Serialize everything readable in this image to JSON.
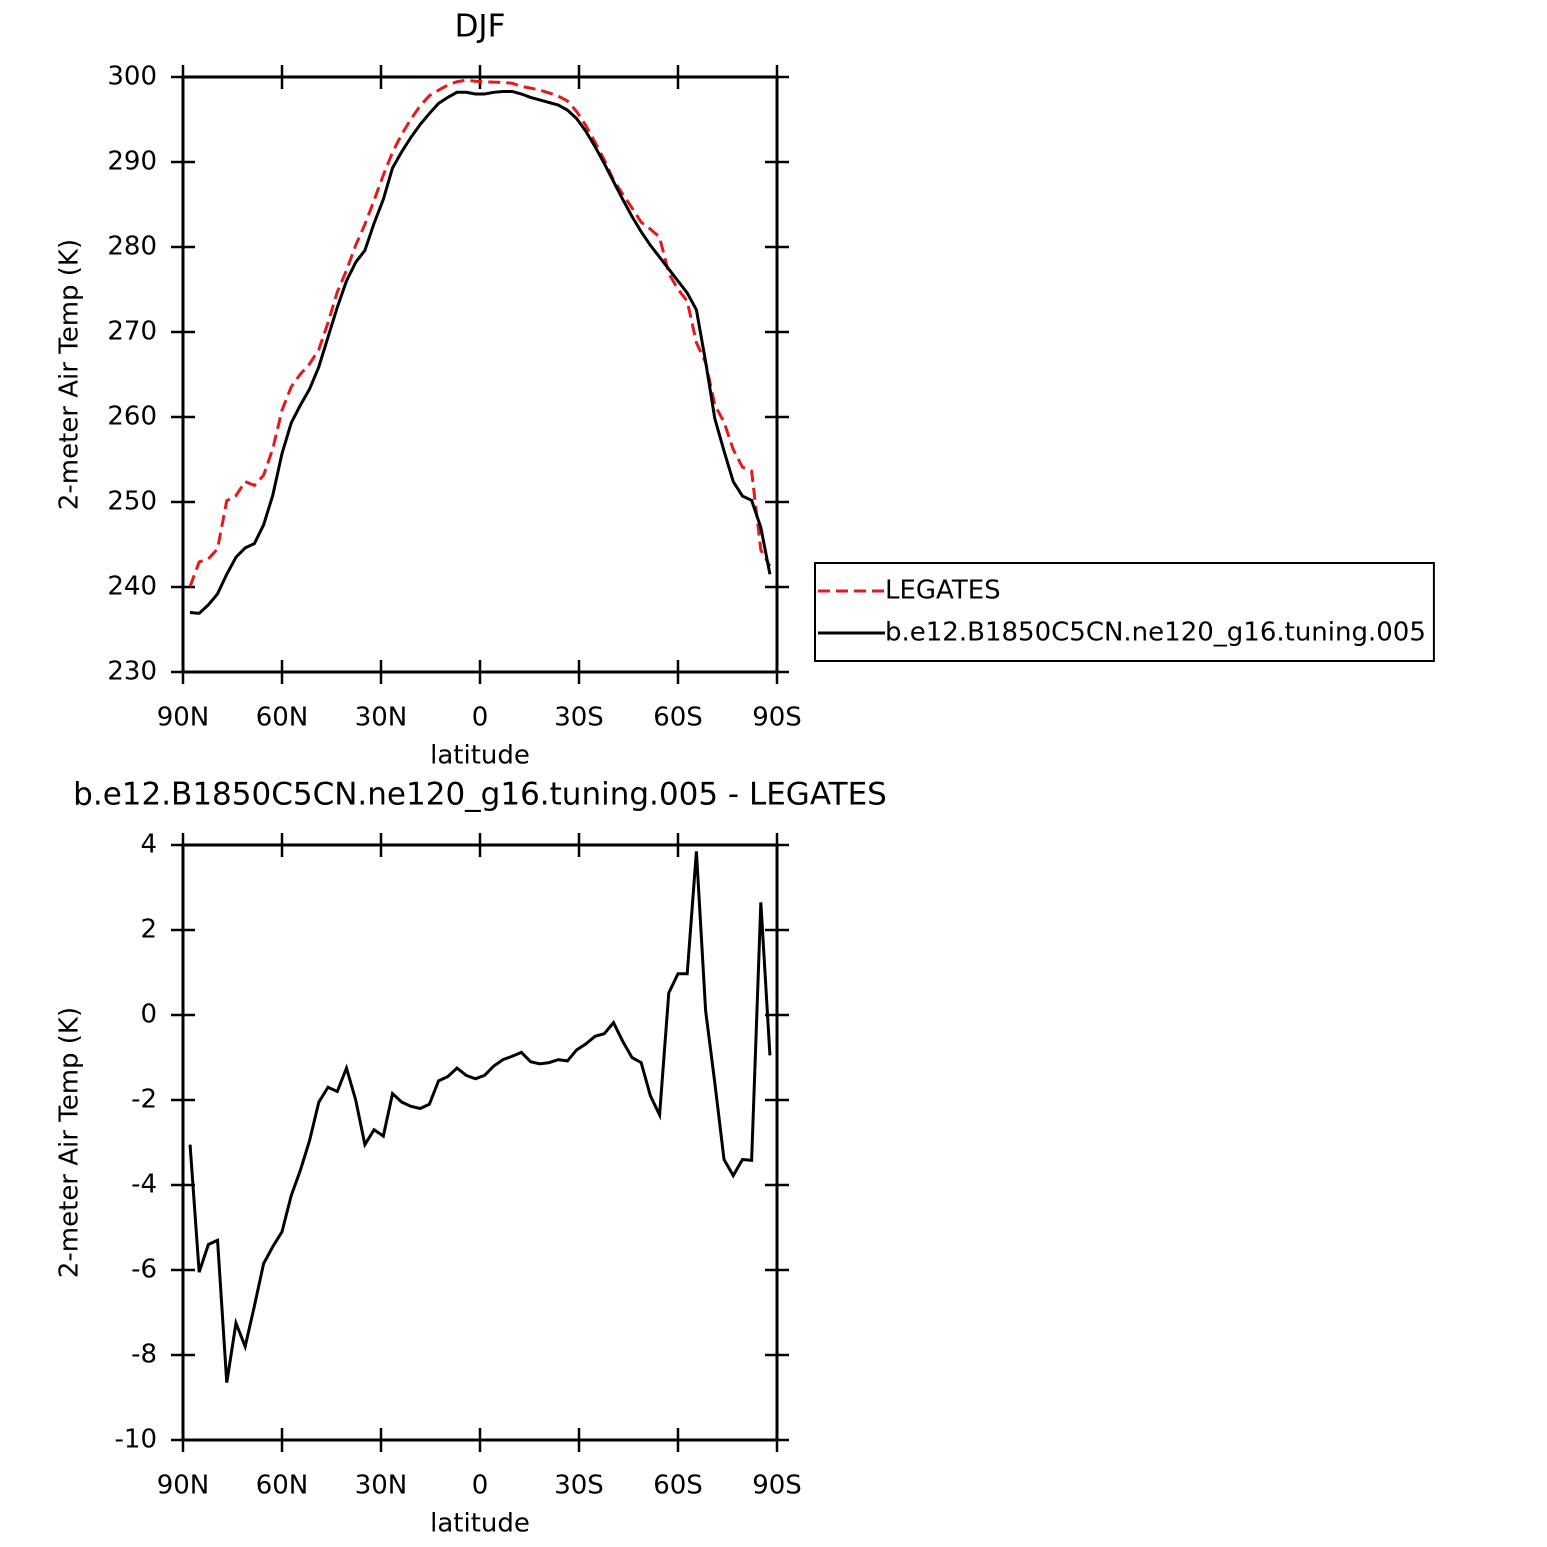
{
  "chart_data": [
    {
      "type": "line",
      "title": "DJF",
      "xlabel": "latitude",
      "ylabel": "2-meter Air Temp (K)",
      "x": [
        87.86,
        85.1,
        82.31,
        79.53,
        76.74,
        73.95,
        71.16,
        68.37,
        65.58,
        62.79,
        60.0,
        57.21,
        54.42,
        51.63,
        48.84,
        46.05,
        43.25,
        40.46,
        37.67,
        34.88,
        32.09,
        29.3,
        26.51,
        23.72,
        20.93,
        18.14,
        15.35,
        12.56,
        9.77,
        6.98,
        4.19,
        1.4,
        -1.4,
        -4.19,
        -6.98,
        -9.77,
        -12.56,
        -15.35,
        -18.14,
        -20.93,
        -23.72,
        -26.51,
        -29.3,
        -32.09,
        -34.88,
        -37.67,
        -40.46,
        -43.25,
        -46.05,
        -48.84,
        -51.63,
        -54.42,
        -57.21,
        -60.0,
        -62.79,
        -65.58,
        -68.37,
        -71.16,
        -73.95,
        -76.74,
        -79.53,
        -82.31,
        -85.1,
        -87.86
      ],
      "series": [
        {
          "name": "LEGATES",
          "color": "#e31a1c",
          "dash": true,
          "values": [
            240.05,
            242.95,
            243.3,
            244.5,
            250.15,
            250.75,
            252.4,
            251.95,
            253.15,
            256.25,
            260.8,
            263.55,
            265.05,
            266.25,
            267.95,
            271.1,
            274.7,
            277.25,
            280.2,
            282.65,
            285.5,
            288.45,
            291.15,
            293.25,
            295.05,
            296.6,
            297.8,
            298.45,
            299.05,
            299.45,
            299.62,
            299.5,
            299.42,
            299.4,
            299.35,
            299.27,
            298.88,
            298.7,
            298.45,
            298.12,
            297.75,
            297.18,
            295.92,
            294.28,
            292.3,
            290.24,
            287.88,
            286.22,
            284.6,
            282.92,
            282.1,
            281.15,
            276.88,
            275.03,
            273.63,
            268.75,
            266.4,
            261.4,
            259.4,
            256.18,
            254.1,
            253.62,
            244.35,
            242.45
          ]
        },
        {
          "name": "b.e12.B1850C5CN.ne120_g16.tuning.005",
          "color": "#000000",
          "dash": false,
          "values": [
            237.0,
            236.9,
            237.9,
            239.2,
            241.5,
            243.5,
            244.6,
            245.1,
            247.3,
            250.8,
            255.7,
            259.3,
            261.4,
            263.3,
            265.9,
            269.4,
            272.9,
            276.0,
            278.2,
            279.6,
            282.8,
            285.6,
            289.3,
            291.2,
            292.9,
            294.4,
            295.7,
            296.9,
            297.6,
            298.2,
            298.2,
            298.0,
            298.0,
            298.2,
            298.3,
            298.3,
            298.0,
            297.6,
            297.3,
            297.0,
            296.7,
            296.1,
            295.1,
            293.6,
            291.8,
            289.8,
            287.7,
            285.6,
            283.6,
            281.8,
            280.2,
            278.8,
            277.4,
            276.0,
            274.6,
            272.6,
            266.5,
            259.8,
            256.0,
            252.4,
            250.7,
            250.2,
            247.0,
            241.5
          ]
        }
      ],
      "xlim": [
        90,
        -90
      ],
      "xticks": [
        {
          "value": 90,
          "label": "90N"
        },
        {
          "value": 60,
          "label": "60N"
        },
        {
          "value": 30,
          "label": "30N"
        },
        0,
        {
          "value": -30,
          "label": "30S"
        },
        {
          "value": -60,
          "label": "60S"
        },
        {
          "value": -90,
          "label": "90S"
        }
      ],
      "ylim": [
        230,
        300
      ],
      "yticks": [
        230,
        240,
        250,
        260,
        270,
        280,
        290,
        300
      ],
      "legend": "right"
    },
    {
      "type": "line",
      "title": "b.e12.B1850C5CN.ne120_g16.tuning.005 - LEGATES",
      "xlabel": "latitude",
      "ylabel": "2-meter Air Temp (K)",
      "x": [
        87.86,
        85.1,
        82.31,
        79.53,
        76.74,
        73.95,
        71.16,
        68.37,
        65.58,
        62.79,
        60.0,
        57.21,
        54.42,
        51.63,
        48.84,
        46.05,
        43.25,
        40.46,
        37.67,
        34.88,
        32.09,
        29.3,
        26.51,
        23.72,
        20.93,
        18.14,
        15.35,
        12.56,
        9.77,
        6.98,
        4.19,
        1.4,
        -1.4,
        -4.19,
        -6.98,
        -9.77,
        -12.56,
        -15.35,
        -18.14,
        -20.93,
        -23.72,
        -26.51,
        -29.3,
        -32.09,
        -34.88,
        -37.67,
        -40.46,
        -43.25,
        -46.05,
        -48.84,
        -51.63,
        -54.42,
        -57.21,
        -60.0,
        -62.79,
        -65.58,
        -68.37,
        -71.16,
        -73.95,
        -76.74,
        -79.53,
        -82.31,
        -85.1,
        -87.86
      ],
      "values": [
        -3.05,
        -6.05,
        -5.4,
        -5.3,
        -8.65,
        -7.25,
        -7.8,
        -6.85,
        -5.85,
        -5.45,
        -5.1,
        -4.25,
        -3.65,
        -2.95,
        -2.05,
        -1.7,
        -1.8,
        -1.25,
        -2.0,
        -3.05,
        -2.7,
        -2.85,
        -1.85,
        -2.05,
        -2.15,
        -2.2,
        -2.1,
        -1.55,
        -1.45,
        -1.25,
        -1.42,
        -1.5,
        -1.42,
        -1.2,
        -1.05,
        -0.97,
        -0.88,
        -1.1,
        -1.15,
        -1.12,
        -1.05,
        -1.08,
        -0.82,
        -0.68,
        -0.5,
        -0.44,
        -0.18,
        -0.62,
        -1.0,
        -1.12,
        -1.9,
        -2.35,
        0.52,
        0.97,
        0.97,
        3.85,
        0.1,
        -1.6,
        -3.4,
        -3.78,
        -3.4,
        -3.42,
        2.65,
        -0.95
      ],
      "color": "#000000",
      "xlim": [
        90,
        -90
      ],
      "xticks": [
        {
          "value": 90,
          "label": "90N"
        },
        {
          "value": 60,
          "label": "60N"
        },
        {
          "value": 30,
          "label": "30N"
        },
        0,
        {
          "value": -30,
          "label": "30S"
        },
        {
          "value": -60,
          "label": "60S"
        },
        {
          "value": -90,
          "label": "90S"
        }
      ],
      "ylim": [
        -10,
        4
      ],
      "yticks": [
        -10,
        -8,
        -6,
        -4,
        -2,
        0,
        2,
        4
      ]
    }
  ]
}
